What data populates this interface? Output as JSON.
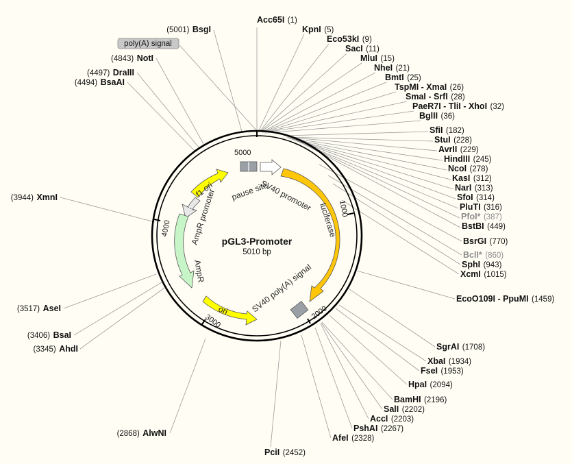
{
  "plasmid": {
    "name": "pGL3-Promoter",
    "length_label": "5010 bp",
    "length": 5010
  },
  "ticks": [
    "1000",
    "2000",
    "3000",
    "4000",
    "5000"
  ],
  "features": [
    {
      "id": "f1-ori",
      "label": "f1 ori",
      "color": "#ffff00"
    },
    {
      "id": "ampr-promoter",
      "label": "AmpR promoter",
      "color": "#e8e8e8"
    },
    {
      "id": "ampr",
      "label": "AmpR",
      "color": "#c8f5c8"
    },
    {
      "id": "ori",
      "label": "ori",
      "color": "#ffff00"
    },
    {
      "id": "sv40-promoter",
      "label": "SV40 promoter",
      "color": "#ffffff"
    },
    {
      "id": "luciferase",
      "label": "luciferase",
      "color": "#ffc60a"
    },
    {
      "id": "sv40-polya",
      "label": "SV40 poly(A) signal",
      "color": "#9aa0a6"
    },
    {
      "id": "pause-site",
      "label": "pause site",
      "color": "#9aa0a6"
    }
  ],
  "sites": [
    {
      "name": "Acc65I",
      "pos": "(1)"
    },
    {
      "name": "KpnI",
      "pos": "(5)"
    },
    {
      "name": "Eco53kI",
      "pos": "(9)"
    },
    {
      "name": "SacI",
      "pos": "(11)"
    },
    {
      "name": "MluI",
      "pos": "(15)"
    },
    {
      "name": "NheI",
      "pos": "(21)"
    },
    {
      "name": "BmtI",
      "pos": "(25)"
    },
    {
      "name": "TspMI - XmaI",
      "pos": "(26)"
    },
    {
      "name": "SmaI - SrfI",
      "pos": "(28)"
    },
    {
      "name": "PaeR7I - TliI - XhoI",
      "pos": "(32)"
    },
    {
      "name": "BglII",
      "pos": "(36)"
    },
    {
      "name": "SfiI",
      "pos": "(182)"
    },
    {
      "name": "StuI",
      "pos": "(228)"
    },
    {
      "name": "AvrII",
      "pos": "(229)"
    },
    {
      "name": "HindIII",
      "pos": "(245)"
    },
    {
      "name": "NcoI",
      "pos": "(278)"
    },
    {
      "name": "KasI",
      "pos": "(312)"
    },
    {
      "name": "NarI",
      "pos": "(313)"
    },
    {
      "name": "SfoI",
      "pos": "(314)"
    },
    {
      "name": "PluTI",
      "pos": "(316)"
    },
    {
      "name": "PfoI*",
      "pos": "(387)"
    },
    {
      "name": "BstBI",
      "pos": "(449)"
    },
    {
      "name": "BsrGI",
      "pos": "(770)"
    },
    {
      "name": "BclI*",
      "pos": "(860)"
    },
    {
      "name": "SphI",
      "pos": "(943)"
    },
    {
      "name": "XcmI",
      "pos": "(1015)"
    },
    {
      "name": "EcoO109I - PpuMI",
      "pos": "(1459)"
    },
    {
      "name": "SgrAI",
      "pos": "(1708)"
    },
    {
      "name": "XbaI",
      "pos": "(1934)"
    },
    {
      "name": "FseI",
      "pos": "(1953)"
    },
    {
      "name": "HpaI",
      "pos": "(2094)"
    },
    {
      "name": "BamHI",
      "pos": "(2196)"
    },
    {
      "name": "SalI",
      "pos": "(2202)"
    },
    {
      "name": "AccI",
      "pos": "(2203)"
    },
    {
      "name": "PshAI",
      "pos": "(2267)"
    },
    {
      "name": "AfeI",
      "pos": "(2328)"
    },
    {
      "name": "PciI",
      "pos": "(2452)"
    },
    {
      "name": "AlwNI",
      "pos": "(2868)"
    },
    {
      "name": "AhdI",
      "pos": "(3345)"
    },
    {
      "name": "BsaI",
      "pos": "(3406)"
    },
    {
      "name": "AseI",
      "pos": "(3517)"
    },
    {
      "name": "XmnI",
      "pos": "(3944)"
    },
    {
      "name": "BsaAI",
      "pos": "(4494)"
    },
    {
      "name": "DraIII",
      "pos": "(4497)"
    },
    {
      "name": "NotI",
      "pos": "(4843)"
    },
    {
      "name": "BsgI",
      "pos": "(5001)"
    }
  ],
  "highlight_label": "poly(A) signal"
}
